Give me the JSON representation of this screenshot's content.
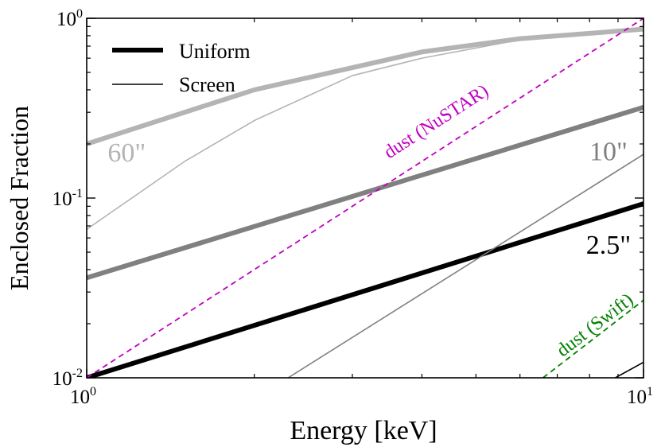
{
  "chart_data": {
    "type": "line",
    "xscale": "log",
    "yscale": "log",
    "xlim": [
      1,
      10
    ],
    "ylim": [
      0.01,
      1
    ],
    "xlabel": "Energy [keV]",
    "ylabel": "Enclosed Fraction",
    "xticks": [
      {
        "value": 1,
        "base": "10",
        "exp": "0"
      },
      {
        "value": 10,
        "base": "10",
        "exp": "1"
      }
    ],
    "yticks": [
      {
        "value": 0.01,
        "base": "10",
        "exp": "-2"
      },
      {
        "value": 0.1,
        "base": "10",
        "exp": "-1"
      },
      {
        "value": 1,
        "base": "10",
        "exp": "0"
      }
    ],
    "legend": {
      "location": "top-left",
      "entries": [
        {
          "label": "Uniform",
          "style": "thick"
        },
        {
          "label": "Screen",
          "style": "thin"
        }
      ]
    },
    "series": [
      {
        "name": "Uniform 60\"",
        "color": "#b4b4b4",
        "style": "thick",
        "x": [
          1,
          2,
          4,
          6,
          10
        ],
        "y": [
          0.2,
          0.4,
          0.65,
          0.77,
          0.87
        ]
      },
      {
        "name": "Uniform 10\"",
        "color": "#808080",
        "style": "thick",
        "x": [
          1,
          10
        ],
        "y": [
          0.036,
          0.32
        ]
      },
      {
        "name": "Uniform 2.5\"",
        "color": "#000000",
        "style": "thick",
        "x": [
          1,
          10
        ],
        "y": [
          0.01,
          0.093
        ]
      },
      {
        "name": "Screen 60\"",
        "color": "#b4b4b4",
        "style": "thin",
        "x": [
          1,
          1.5,
          2,
          3,
          4,
          6,
          10
        ],
        "y": [
          0.067,
          0.16,
          0.27,
          0.48,
          0.6,
          0.76,
          0.87
        ]
      },
      {
        "name": "Screen 10\"",
        "color": "#808080",
        "style": "thin",
        "x": [
          2.3,
          10
        ],
        "y": [
          0.01,
          0.175
        ]
      },
      {
        "name": "Screen 2.5\"",
        "color": "#000000",
        "style": "thin",
        "x": [
          8.9,
          10
        ],
        "y": [
          0.01,
          0.0122
        ]
      },
      {
        "name": "dust (NuSTAR)",
        "color": "#c000c0",
        "style": "dashed",
        "x": [
          1,
          10
        ],
        "y": [
          0.01,
          1.0
        ]
      },
      {
        "name": "dust (Swift)",
        "color": "#008000",
        "style": "dashed",
        "x": [
          6.6,
          10
        ],
        "y": [
          0.01,
          0.027
        ]
      }
    ],
    "annotations": [
      {
        "text": "60\"",
        "x": 1.18,
        "y": 0.16,
        "color": "#b4b4b4",
        "size": "large"
      },
      {
        "text": "10\"",
        "x": 8.65,
        "y": 0.162,
        "color": "#808080",
        "size": "large"
      },
      {
        "text": "2.5\"",
        "x": 8.65,
        "y": 0.049,
        "color": "#000000",
        "size": "large"
      },
      {
        "text": "dust (NuSTAR)",
        "x": 4.3,
        "y": 0.25,
        "color": "#c000c0",
        "size": "small",
        "rotate_with": "dust (NuSTAR)"
      },
      {
        "text": "dust (Swift)",
        "x": 8.3,
        "y": 0.0185,
        "color": "#008000",
        "size": "small",
        "rotate_with": "dust (Swift)"
      }
    ]
  }
}
